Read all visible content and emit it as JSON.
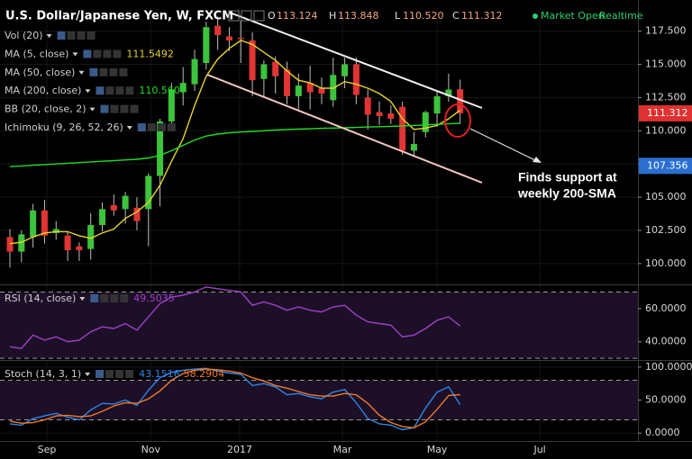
{
  "header": {
    "title": "U.S. Dollar/Japanese Yen, W, FXCM",
    "ohlc": [
      {
        "key": "O",
        "value": 113.124
      },
      {
        "key": "H",
        "value": 113.848
      },
      {
        "key": "L",
        "value": 110.52,
        "label": "110.520"
      },
      {
        "key": "C",
        "value": 111.312
      }
    ],
    "status": [
      "Market Open",
      "Realtime"
    ]
  },
  "annotation": [
    "Finds support at",
    "weekly 200-SMA"
  ],
  "chart_data": [
    {
      "type": "candlestick",
      "up_color": "#3cc43c",
      "down_color": "#e23434",
      "wick_color": "#bdbdbd",
      "grid": true,
      "x": [
        0,
        1,
        2,
        3,
        4,
        5,
        6,
        7,
        8,
        9,
        10,
        11,
        12,
        13,
        14,
        15,
        16,
        17,
        18,
        19,
        20,
        21,
        22,
        23,
        24,
        25,
        26,
        27,
        28,
        29,
        30,
        31,
        32,
        33,
        34,
        35,
        36,
        37,
        38,
        39
      ],
      "open": [
        102.0,
        100.9,
        102.0,
        104.0,
        102.3,
        102.1,
        101.3,
        101.1,
        102.9,
        104.4,
        104.1,
        104.2,
        104.1,
        106.6,
        110.7,
        112.9,
        113.5,
        115.1,
        117.9,
        117.1,
        117.0,
        116.8,
        113.9,
        115.2,
        114.6,
        112.6,
        113.6,
        113.2,
        112.3,
        114.1,
        115.0,
        112.5,
        111.4,
        111.3,
        111.8,
        108.5,
        109.9,
        111.3,
        112.6,
        113.124
      ],
      "high": [
        102.6,
        102.5,
        104.5,
        104.8,
        103.2,
        102.4,
        101.6,
        103.8,
        104.6,
        105.2,
        105.4,
        105.0,
        106.8,
        110.9,
        113.6,
        114.8,
        116.1,
        118.2,
        118.6,
        117.8,
        118.3,
        117.4,
        115.3,
        115.6,
        115.2,
        114.3,
        114.9,
        114.0,
        115.5,
        115.5,
        115.5,
        113.1,
        112.2,
        111.9,
        112.2,
        109.9,
        111.5,
        113.0,
        114.3,
        113.848
      ],
      "low": [
        99.7,
        100.1,
        101.2,
        101.5,
        101.8,
        100.2,
        100.2,
        100.3,
        102.4,
        103.6,
        103.0,
        102.5,
        101.3,
        104.3,
        110.2,
        111.9,
        113.0,
        114.6,
        116.1,
        116.0,
        115.1,
        112.6,
        112.6,
        112.8,
        112.0,
        111.6,
        111.6,
        112.0,
        111.8,
        113.2,
        112.0,
        110.1,
        110.4,
        110.5,
        108.2,
        108.1,
        109.5,
        110.3,
        112.2,
        110.52
      ],
      "close": [
        100.9,
        102.2,
        104.0,
        102.1,
        102.6,
        101.0,
        101.0,
        102.9,
        104.1,
        104.0,
        105.1,
        103.2,
        106.6,
        110.7,
        113.1,
        113.6,
        115.4,
        117.8,
        117.2,
        116.8,
        116.9,
        113.8,
        115.0,
        114.1,
        112.6,
        113.4,
        112.9,
        112.8,
        114.2,
        115.0,
        112.7,
        111.2,
        111.1,
        110.9,
        108.5,
        109.0,
        111.4,
        112.6,
        113.1,
        111.312
      ],
      "indicators": [
        {
          "name": "Vol (20)"
        },
        {
          "name": "MA (5, close)",
          "color": "#e8d42e",
          "values": [
            101.5,
            101.6,
            102.0,
            102.3,
            102.4,
            102.4,
            102.1,
            101.9,
            102.3,
            102.6,
            103.4,
            103.9,
            104.6,
            105.9,
            107.7,
            109.4,
            111.9,
            114.1,
            115.4,
            116.2,
            116.8,
            116.5,
            115.9,
            115.3,
            114.5,
            113.8,
            113.6,
            113.2,
            113.2,
            113.7,
            113.5,
            113.2,
            112.8,
            112.2,
            110.9,
            110.1,
            110.2,
            110.4,
            110.9,
            111.5492
          ]
        },
        {
          "name": "MA (50, close)"
        },
        {
          "name": "MA (200, close)",
          "color": "#22dd22",
          "values": [
            107.3,
            107.35,
            107.4,
            107.45,
            107.5,
            107.55,
            107.6,
            107.65,
            107.7,
            107.75,
            107.8,
            107.85,
            107.95,
            108.15,
            108.5,
            108.9,
            109.3,
            109.6,
            109.75,
            109.85,
            109.9,
            109.95,
            110.0,
            110.05,
            110.1,
            110.12,
            110.15,
            110.18,
            110.2,
            110.22,
            110.25,
            110.28,
            110.3,
            110.33,
            110.36,
            110.4,
            110.44,
            110.48,
            110.52,
            110.5607
          ]
        },
        {
          "name": "BB (20, close, 2)"
        },
        {
          "name": "Ichimoku (9, 26, 52, 26)"
        }
      ],
      "xlim": [
        -0.86,
        54.4
      ],
      "xticks": [
        {
          "value": 3.2,
          "label": "Sep"
        },
        {
          "value": 12.2,
          "label": "Nov"
        },
        {
          "value": 19.9,
          "label": "2017"
        },
        {
          "value": 28.8,
          "label": "Mar"
        },
        {
          "value": 37.0,
          "label": "May"
        },
        {
          "value": 45.9,
          "label": "Jul"
        }
      ],
      "ylim": [
        98.5,
        119.3
      ],
      "yticks": [
        {
          "value": 100,
          "label": "100.000"
        },
        {
          "value": 102.5,
          "label": "102.500"
        },
        {
          "value": 105,
          "label": "105.000"
        },
        {
          "value": 107.5,
          "label": "107.500"
        },
        {
          "value": 110,
          "label": "110.000"
        },
        {
          "value": 112.5,
          "label": "112.500"
        },
        {
          "value": 115,
          "label": "115.000"
        },
        {
          "value": 117.5,
          "label": "117.500"
        }
      ],
      "price_tags": [
        {
          "value": 111.312,
          "color": "#e03030"
        },
        {
          "value": 107.356,
          "color": "#2a6fd0"
        }
      ]
    },
    {
      "type": "line",
      "grid": true,
      "band_color": "#1c0f27",
      "series": [
        {
          "name": "RSI (14, close)",
          "color": "#a040c8",
          "values": [
            37,
            36,
            44,
            41,
            43,
            40,
            41,
            46,
            49,
            48,
            51,
            47,
            55,
            63,
            67,
            68,
            70,
            73,
            72,
            71,
            70,
            62,
            64,
            62,
            59,
            61,
            59,
            58,
            61,
            62,
            56,
            52,
            51,
            50,
            43,
            44,
            48,
            53,
            55,
            49.5035
          ]
        }
      ],
      "bands": [
        30,
        70
      ],
      "ylim": [
        29,
        73.5
      ],
      "yticks": [
        {
          "value": 40,
          "label": "40.0000"
        },
        {
          "value": 60,
          "label": "60.0000"
        }
      ]
    },
    {
      "type": "line",
      "grid": true,
      "band_color": "#1c0f27",
      "title": "Stoch (14, 3, 1)",
      "series": [
        {
          "color": "#2f86e6",
          "values": [
            14,
            12,
            22,
            26,
            30,
            24,
            20,
            35,
            45,
            44,
            50,
            42,
            65,
            84,
            92,
            95,
            97,
            98,
            94,
            91,
            89,
            72,
            75,
            70,
            58,
            60,
            55,
            52,
            62,
            66,
            46,
            22,
            14,
            12,
            5,
            8,
            38,
            62,
            70,
            43.1516
          ]
        },
        {
          "color": "#f07a2a",
          "values": [
            18,
            15,
            16,
            20,
            26,
            27,
            25,
            26,
            33,
            41,
            46,
            45,
            52,
            64,
            80,
            90,
            95,
            97,
            96,
            94,
            91,
            84,
            79,
            72,
            68,
            63,
            58,
            56,
            56,
            60,
            58,
            45,
            27,
            16,
            10,
            8,
            17,
            36,
            57,
            58.2904
          ]
        }
      ],
      "bands": [
        20,
        80
      ],
      "ylim": [
        -12,
        108
      ],
      "yticks": [
        {
          "value": 0,
          "label": "0.0000"
        },
        {
          "value": 50,
          "label": "50.0000"
        },
        {
          "value": 100,
          "label": "100.0000"
        }
      ]
    }
  ]
}
